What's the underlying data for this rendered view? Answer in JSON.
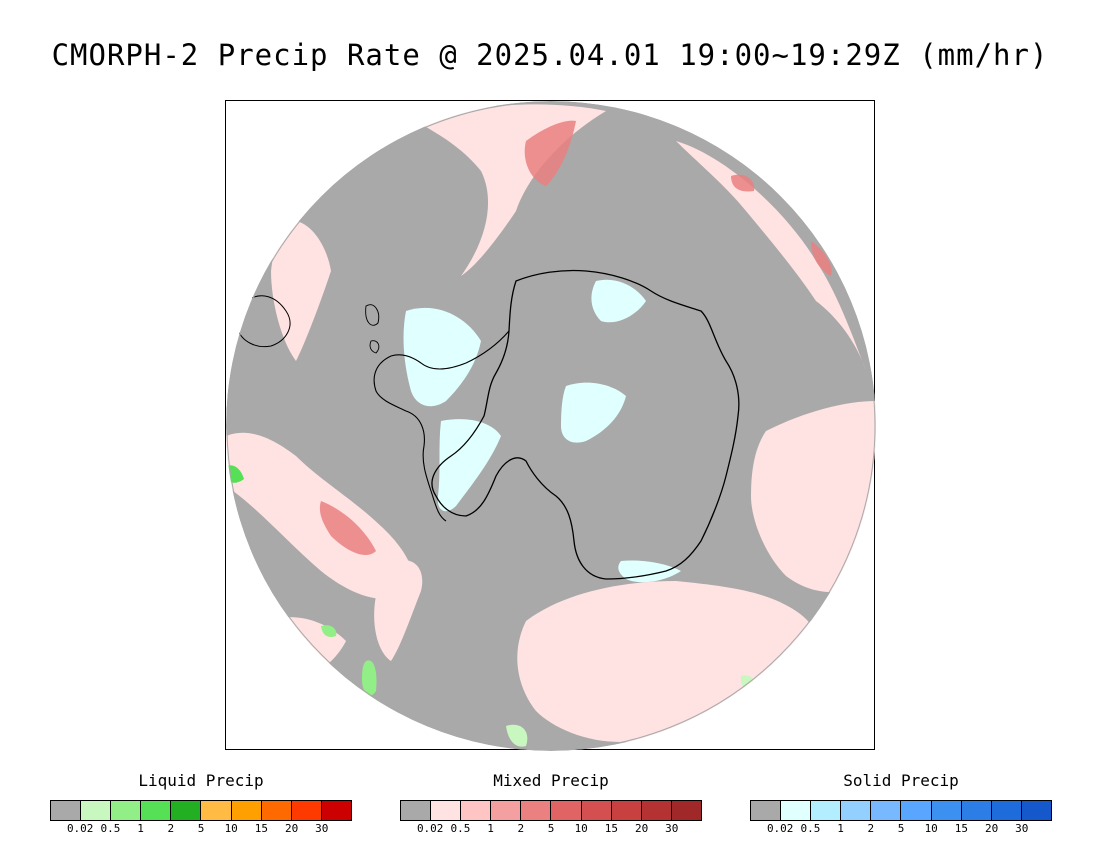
{
  "title": "CMORPH-2 Precip Rate @ 2025.04.01 19:00~19:29Z (mm/hr)",
  "map": {
    "background_color": "#a9a9a9",
    "coastline_color": "#000000"
  },
  "legends": [
    {
      "id": "liquid",
      "title": "Liquid Precip",
      "colors": [
        "#a9a9a9",
        "#c8f7c0",
        "#92ee86",
        "#55e055",
        "#22b022",
        "#ffbb44",
        "#ff9f00",
        "#ff6a00",
        "#ff3a00",
        "#cc0000"
      ],
      "ticks": [
        "0.02",
        "0.5",
        "1",
        "2",
        "5",
        "10",
        "15",
        "20",
        "30"
      ]
    },
    {
      "id": "mixed",
      "title": "Mixed Precip",
      "colors": [
        "#a9a9a9",
        "#ffe2e2",
        "#ffc4c4",
        "#f4a0a0",
        "#ea8080",
        "#e06464",
        "#d45050",
        "#c84040",
        "#b43232",
        "#a02828"
      ],
      "ticks": [
        "0.02",
        "0.5",
        "1",
        "2",
        "5",
        "10",
        "15",
        "20",
        "30"
      ]
    },
    {
      "id": "solid",
      "title": "Solid Precip",
      "colors": [
        "#a9a9a9",
        "#e0ffff",
        "#b2eeff",
        "#94d0ff",
        "#78b8ff",
        "#58a6ff",
        "#3c90f0",
        "#2c7ee6",
        "#1e6cdc",
        "#1458cc"
      ],
      "ticks": [
        "0.02",
        "0.5",
        "1",
        "2",
        "5",
        "10",
        "15",
        "20",
        "30"
      ]
    }
  ]
}
